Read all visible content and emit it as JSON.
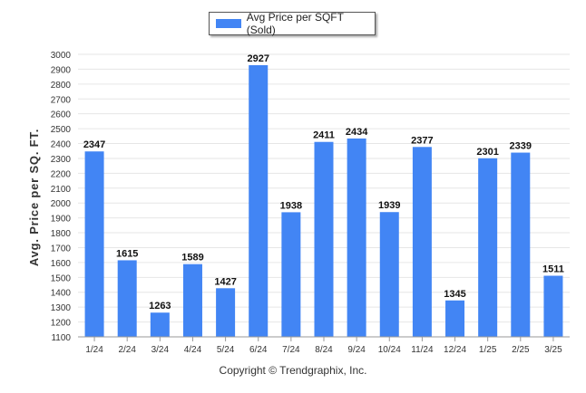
{
  "legend": {
    "label": "Avg Price per SQFT (Sold)"
  },
  "footer": {
    "copyright": "Copyright © Trendgraphix, Inc."
  },
  "colors": {
    "bar": "#4285f4",
    "grid": "#e6e6e6",
    "axis": "#999999"
  },
  "chart_data": {
    "type": "bar",
    "categories": [
      "1/24",
      "2/24",
      "3/24",
      "4/24",
      "5/24",
      "6/24",
      "7/24",
      "8/24",
      "9/24",
      "10/24",
      "11/24",
      "12/24",
      "1/25",
      "2/25",
      "3/25"
    ],
    "values": [
      2347,
      1615,
      1263,
      1589,
      1427,
      2927,
      1938,
      2411,
      2434,
      1939,
      2377,
      1345,
      2301,
      2339,
      1511
    ],
    "series": [
      {
        "name": "Avg Price per SQFT (Sold)",
        "values": [
          2347,
          1615,
          1263,
          1589,
          1427,
          2927,
          1938,
          2411,
          2434,
          1939,
          2377,
          1345,
          2301,
          2339,
          1511
        ]
      }
    ],
    "ylabel": "Avg. Price per SQ. FT.",
    "xlabel": "",
    "ylim": [
      1100,
      3000
    ],
    "yticks": [
      1100,
      1200,
      1300,
      1400,
      1500,
      1600,
      1700,
      1800,
      1900,
      2000,
      2100,
      2200,
      2300,
      2400,
      2500,
      2600,
      2700,
      2800,
      2900,
      3000
    ],
    "grid": true,
    "data_labels": true,
    "legend_position": "top-center"
  }
}
